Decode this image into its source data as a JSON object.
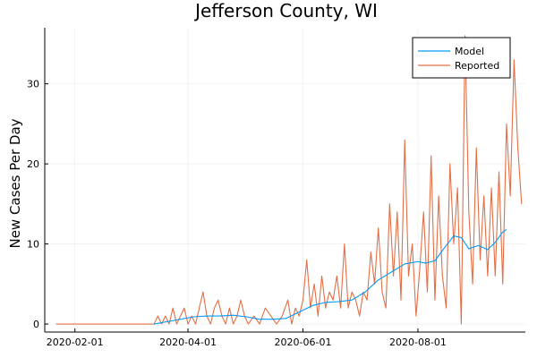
{
  "chart_data": {
    "type": "line",
    "title": "Jefferson County, WI",
    "xlabel": "",
    "ylabel": "New Cases Per Day",
    "x_ticks": [
      "2020-02-01",
      "2020-04-01",
      "2020-06-01",
      "2020-08-01"
    ],
    "y_ticks": [
      0,
      10,
      20,
      30
    ],
    "xlim": [
      "2020-01-16",
      "2020-09-27"
    ],
    "ylim": [
      -1,
      37
    ],
    "grid": true,
    "legend_position": "top-right",
    "colors": {
      "Model": "#009af9",
      "Reported": "#e26f46"
    },
    "series": [
      {
        "name": "Model",
        "points": [
          [
            "2020-03-14",
            0.0
          ],
          [
            "2020-03-21",
            0.3
          ],
          [
            "2020-03-28",
            0.6
          ],
          [
            "2020-04-04",
            0.9
          ],
          [
            "2020-04-11",
            1.0
          ],
          [
            "2020-04-18",
            1.0
          ],
          [
            "2020-04-25",
            1.1
          ],
          [
            "2020-05-02",
            0.9
          ],
          [
            "2020-05-09",
            0.6
          ],
          [
            "2020-05-16",
            0.6
          ],
          [
            "2020-05-23",
            0.7
          ],
          [
            "2020-05-30",
            1.5
          ],
          [
            "2020-06-06",
            2.3
          ],
          [
            "2020-06-13",
            2.7
          ],
          [
            "2020-06-20",
            2.8
          ],
          [
            "2020-06-27",
            3.0
          ],
          [
            "2020-07-04",
            4.0
          ],
          [
            "2020-07-11",
            5.5
          ],
          [
            "2020-07-18",
            6.5
          ],
          [
            "2020-07-25",
            7.5
          ],
          [
            "2020-08-01",
            7.8
          ],
          [
            "2020-08-05",
            7.6
          ],
          [
            "2020-08-10",
            7.9
          ],
          [
            "2020-08-15",
            9.5
          ],
          [
            "2020-08-20",
            11.0
          ],
          [
            "2020-08-24",
            10.8
          ],
          [
            "2020-08-28",
            9.4
          ],
          [
            "2020-09-02",
            9.8
          ],
          [
            "2020-09-07",
            9.3
          ],
          [
            "2020-09-11",
            10.2
          ],
          [
            "2020-09-15",
            11.5
          ],
          [
            "2020-09-17",
            11.8
          ]
        ]
      },
      {
        "name": "Reported",
        "points": [
          [
            "2020-01-22",
            0
          ],
          [
            "2020-03-14",
            0
          ],
          [
            "2020-03-16",
            1
          ],
          [
            "2020-03-18",
            0
          ],
          [
            "2020-03-20",
            1
          ],
          [
            "2020-03-22",
            0
          ],
          [
            "2020-03-24",
            2
          ],
          [
            "2020-03-26",
            0
          ],
          [
            "2020-03-28",
            1
          ],
          [
            "2020-03-30",
            2
          ],
          [
            "2020-04-01",
            0
          ],
          [
            "2020-04-03",
            1
          ],
          [
            "2020-04-05",
            0
          ],
          [
            "2020-04-07",
            2
          ],
          [
            "2020-04-09",
            4
          ],
          [
            "2020-04-11",
            1
          ],
          [
            "2020-04-13",
            0
          ],
          [
            "2020-04-15",
            2
          ],
          [
            "2020-04-17",
            3
          ],
          [
            "2020-04-19",
            1
          ],
          [
            "2020-04-21",
            0
          ],
          [
            "2020-04-23",
            2
          ],
          [
            "2020-04-25",
            0
          ],
          [
            "2020-04-27",
            1
          ],
          [
            "2020-04-29",
            3
          ],
          [
            "2020-05-01",
            1
          ],
          [
            "2020-05-03",
            0
          ],
          [
            "2020-05-06",
            1
          ],
          [
            "2020-05-09",
            0
          ],
          [
            "2020-05-12",
            2
          ],
          [
            "2020-05-15",
            1
          ],
          [
            "2020-05-18",
            0
          ],
          [
            "2020-05-21",
            1
          ],
          [
            "2020-05-24",
            3
          ],
          [
            "2020-05-26",
            0
          ],
          [
            "2020-05-28",
            2
          ],
          [
            "2020-05-30",
            1
          ],
          [
            "2020-06-01",
            3
          ],
          [
            "2020-06-03",
            8
          ],
          [
            "2020-06-05",
            2
          ],
          [
            "2020-06-07",
            5
          ],
          [
            "2020-06-09",
            1
          ],
          [
            "2020-06-11",
            6
          ],
          [
            "2020-06-13",
            2
          ],
          [
            "2020-06-15",
            4
          ],
          [
            "2020-06-17",
            3
          ],
          [
            "2020-06-19",
            6
          ],
          [
            "2020-06-21",
            2
          ],
          [
            "2020-06-23",
            10
          ],
          [
            "2020-06-25",
            2
          ],
          [
            "2020-06-27",
            4
          ],
          [
            "2020-06-29",
            3
          ],
          [
            "2020-07-01",
            1
          ],
          [
            "2020-07-03",
            4
          ],
          [
            "2020-07-05",
            3
          ],
          [
            "2020-07-07",
            9
          ],
          [
            "2020-07-09",
            5
          ],
          [
            "2020-07-11",
            12
          ],
          [
            "2020-07-13",
            4
          ],
          [
            "2020-07-15",
            2
          ],
          [
            "2020-07-17",
            15
          ],
          [
            "2020-07-19",
            6
          ],
          [
            "2020-07-21",
            14
          ],
          [
            "2020-07-23",
            3
          ],
          [
            "2020-07-25",
            23
          ],
          [
            "2020-07-27",
            6
          ],
          [
            "2020-07-29",
            10
          ],
          [
            "2020-07-31",
            1
          ],
          [
            "2020-08-02",
            7
          ],
          [
            "2020-08-04",
            14
          ],
          [
            "2020-08-06",
            4
          ],
          [
            "2020-08-08",
            21
          ],
          [
            "2020-08-10",
            3
          ],
          [
            "2020-08-12",
            16
          ],
          [
            "2020-08-14",
            6
          ],
          [
            "2020-08-16",
            2
          ],
          [
            "2020-08-18",
            20
          ],
          [
            "2020-08-20",
            10
          ],
          [
            "2020-08-22",
            17
          ],
          [
            "2020-08-24",
            0
          ],
          [
            "2020-08-26",
            36
          ],
          [
            "2020-08-28",
            14
          ],
          [
            "2020-08-30",
            5
          ],
          [
            "2020-09-01",
            22
          ],
          [
            "2020-09-03",
            8
          ],
          [
            "2020-09-05",
            16
          ],
          [
            "2020-09-07",
            6
          ],
          [
            "2020-09-09",
            17
          ],
          [
            "2020-09-11",
            6
          ],
          [
            "2020-09-13",
            19
          ],
          [
            "2020-09-15",
            5
          ],
          [
            "2020-09-17",
            25
          ],
          [
            "2020-09-19",
            16
          ],
          [
            "2020-09-21",
            33
          ],
          [
            "2020-09-23",
            22
          ],
          [
            "2020-09-25",
            15
          ]
        ]
      }
    ]
  }
}
